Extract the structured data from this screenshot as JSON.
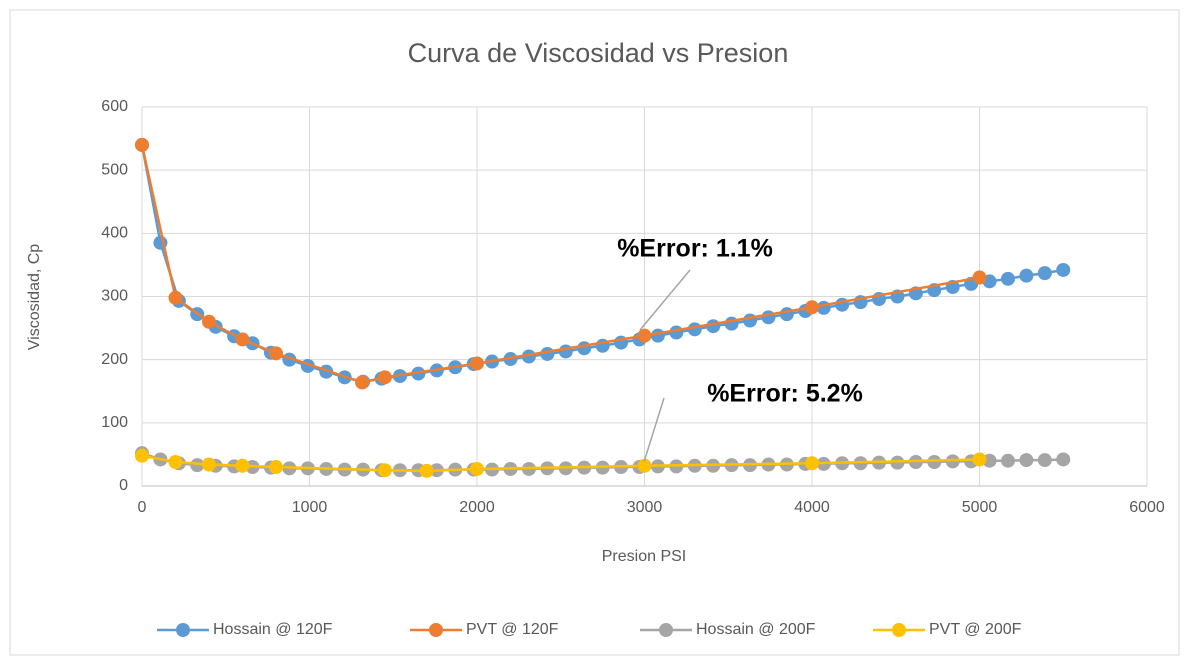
{
  "chart_data": {
    "type": "line",
    "title": "Curva de Viscosidad vs Presion",
    "x_label": "Presion PSI",
    "y_label": "Viscosidad, Cp",
    "xlim": [
      0,
      6000
    ],
    "xticks": [
      0,
      1000,
      2000,
      3000,
      4000,
      5000,
      6000
    ],
    "ylim": [
      0,
      600
    ],
    "yticks": [
      0,
      100,
      200,
      300,
      400,
      500,
      600
    ],
    "grid": true,
    "legend": "bottom",
    "annotations": [
      "%Error:  1.1%",
      "%Error:  5.2%"
    ],
    "series": [
      {
        "name": "Hossain @ 120F",
        "color": "#5b9bd5",
        "x": [
          0,
          110,
          220,
          330,
          440,
          550,
          660,
          770,
          880,
          990,
          1100,
          1210,
          1320,
          1430,
          1540,
          1650,
          1760,
          1870,
          1980,
          2090,
          2200,
          2310,
          2420,
          2530,
          2640,
          2750,
          2860,
          2970,
          3080,
          3190,
          3300,
          3410,
          3520,
          3630,
          3740,
          3850,
          3960,
          4070,
          4180,
          4290,
          4400,
          4510,
          4620,
          4730,
          4840,
          4950,
          5060,
          5170,
          5280,
          5390,
          5500
        ],
        "values": [
          540,
          385,
          293,
          272,
          252,
          237,
          226,
          211,
          200,
          190,
          181,
          172,
          165,
          170,
          174,
          178,
          183,
          188,
          193,
          197,
          201,
          205,
          209,
          213,
          218,
          222,
          227,
          232,
          238,
          243,
          248,
          253,
          257,
          262,
          267,
          272,
          277,
          282,
          287,
          291,
          296,
          300,
          305,
          310,
          315,
          320,
          324,
          328,
          333,
          337,
          342
        ]
      },
      {
        "name": "PVT @ 120F",
        "color": "#ed7d31",
        "x": [
          0,
          200,
          400,
          600,
          800,
          1314,
          1450,
          2000,
          3000,
          4000,
          5000
        ],
        "values": [
          540,
          298,
          260,
          232,
          210,
          164,
          172,
          194,
          238,
          283,
          330
        ]
      },
      {
        "name": "Hossain @ 200F",
        "color": "#a5a5a5",
        "x": [
          0,
          110,
          220,
          330,
          440,
          550,
          660,
          770,
          880,
          990,
          1100,
          1210,
          1320,
          1430,
          1540,
          1650,
          1760,
          1870,
          1980,
          2090,
          2200,
          2310,
          2420,
          2530,
          2640,
          2750,
          2860,
          2970,
          3080,
          3190,
          3300,
          3410,
          3520,
          3630,
          3740,
          3850,
          3960,
          4070,
          4180,
          4290,
          4400,
          4510,
          4620,
          4730,
          4840,
          4950,
          5060,
          5170,
          5280,
          5390,
          5500
        ],
        "values": [
          52,
          42,
          36,
          33,
          32,
          31,
          30,
          29,
          28,
          28,
          27,
          26,
          26,
          25,
          25,
          25,
          25,
          26,
          26,
          26,
          27,
          27,
          28,
          28,
          29,
          29,
          30,
          30,
          31,
          31,
          32,
          32,
          33,
          33,
          34,
          34,
          35,
          35,
          36,
          36,
          37,
          37,
          38,
          38,
          39,
          39,
          40,
          40,
          41,
          41,
          42
        ]
      },
      {
        "name": "PVT @ 200F",
        "color": "#ffc000",
        "x": [
          0,
          200,
          400,
          600,
          800,
          1450,
          1700,
          2000,
          3000,
          4000,
          5000
        ],
        "values": [
          48,
          38,
          34,
          32,
          30,
          25,
          24,
          27,
          32,
          36,
          42
        ]
      }
    ]
  }
}
